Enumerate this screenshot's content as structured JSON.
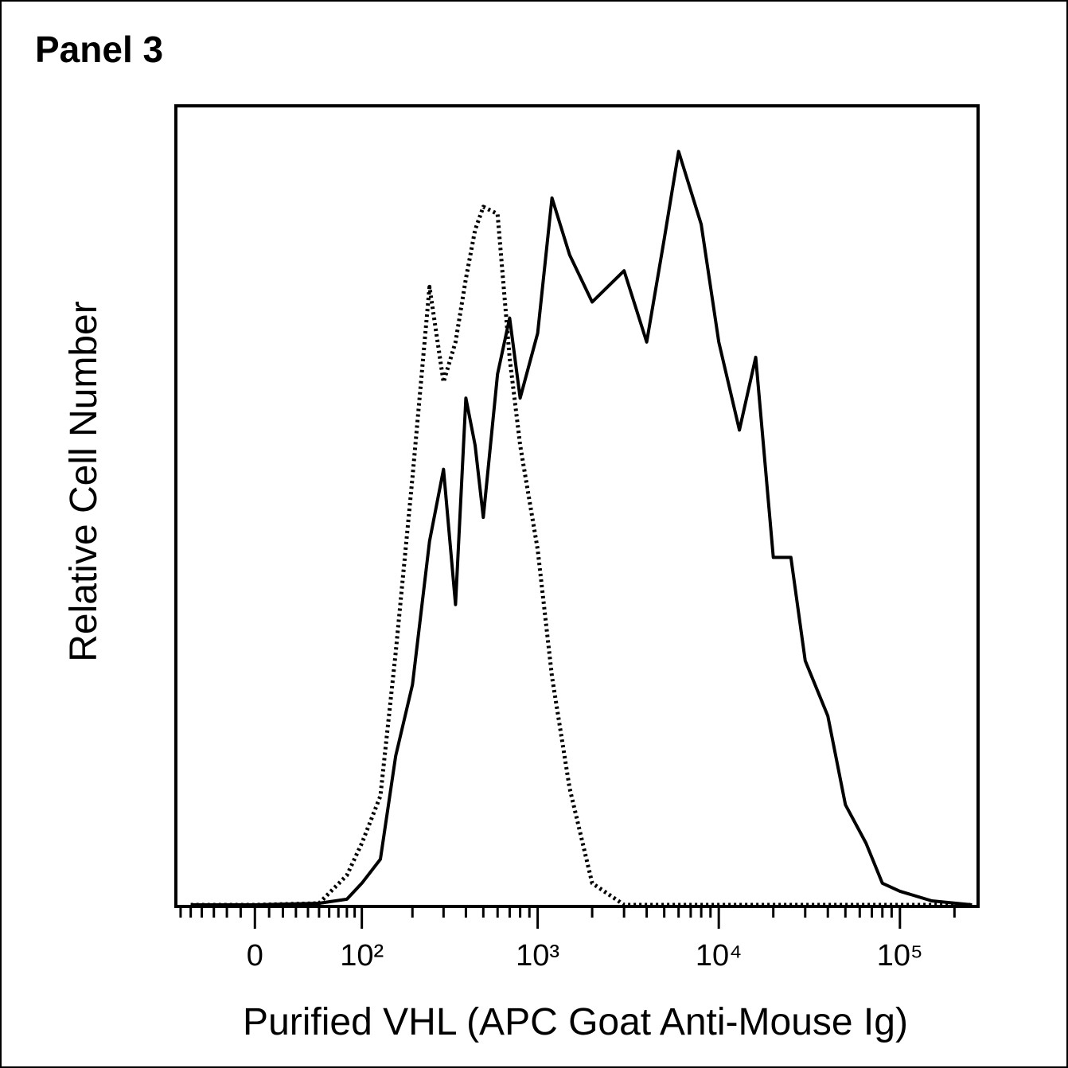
{
  "chart_data": {
    "type": "line",
    "title": "Panel 3",
    "x_label": "Purified VHL (APC Goat Anti-Mouse Ig)",
    "y_label": "Relative Cell Number",
    "xscale": "asinh",
    "x": [
      -50,
      -20,
      0,
      50,
      80,
      100,
      130,
      160,
      200,
      250,
      300,
      350,
      400,
      450,
      500,
      600,
      700,
      800,
      1000,
      1200,
      1500,
      2000,
      3000,
      4000,
      5000,
      6000,
      8000,
      10000,
      13000,
      16000,
      20000,
      25000,
      30000,
      40000,
      50000,
      65000,
      80000,
      100000,
      150000,
      250000
    ],
    "series": [
      {
        "color": "#000000",
        "style": "solid",
        "values": [
          0.2,
          0.2,
          0.2,
          0.4,
          0.9,
          2.9,
          5.9,
          18.8,
          27.7,
          45.6,
          54.6,
          37.7,
          63.5,
          57.6,
          48.6,
          66.5,
          73.5,
          63.5,
          71.6,
          88.5,
          81.4,
          75.5,
          79.4,
          70.5,
          83.4,
          94.3,
          85.2,
          70.5,
          59.5,
          68.6,
          43.6,
          43.6,
          30.7,
          23.8,
          12.7,
          7.9,
          2.9,
          1.9,
          0.7,
          0.2
        ]
      },
      {
        "color": "#000000",
        "style": "dotted",
        "values": [
          0.2,
          0.2,
          0.2,
          0.4,
          3.9,
          7.9,
          13.8,
          31.7,
          53.6,
          77.4,
          65.5,
          70.5,
          78.4,
          84.5,
          87.4,
          86.5,
          68.5,
          57.6,
          44.6,
          28.7,
          14.8,
          2.9,
          0.2,
          0.2,
          0.2,
          0.2,
          0.2,
          0.2,
          0.2,
          0.2,
          0.2,
          0.2,
          0.2,
          0.2,
          0.2,
          0.2,
          0.2,
          0.2,
          0.2,
          0.2
        ]
      }
    ],
    "xlim": [
      -65,
      270000
    ],
    "ylim": [
      0,
      100
    ],
    "xticks": [
      0,
      {
        "value": 100,
        "label": "10²"
      },
      {
        "value": 1000,
        "label": "10³"
      },
      {
        "value": 10000,
        "label": "10⁴"
      },
      {
        "value": 100000,
        "label": "10⁵"
      }
    ],
    "xminorticks": [
      -60,
      -50,
      -40,
      -30,
      -20,
      -10,
      10,
      20,
      30,
      40,
      50,
      60,
      70,
      80,
      90,
      200,
      300,
      400,
      500,
      600,
      700,
      800,
      900,
      2000,
      3000,
      4000,
      5000,
      6000,
      7000,
      8000,
      9000,
      20000,
      30000,
      40000,
      50000,
      60000,
      70000,
      80000,
      90000,
      200000
    ],
    "grid": false
  }
}
